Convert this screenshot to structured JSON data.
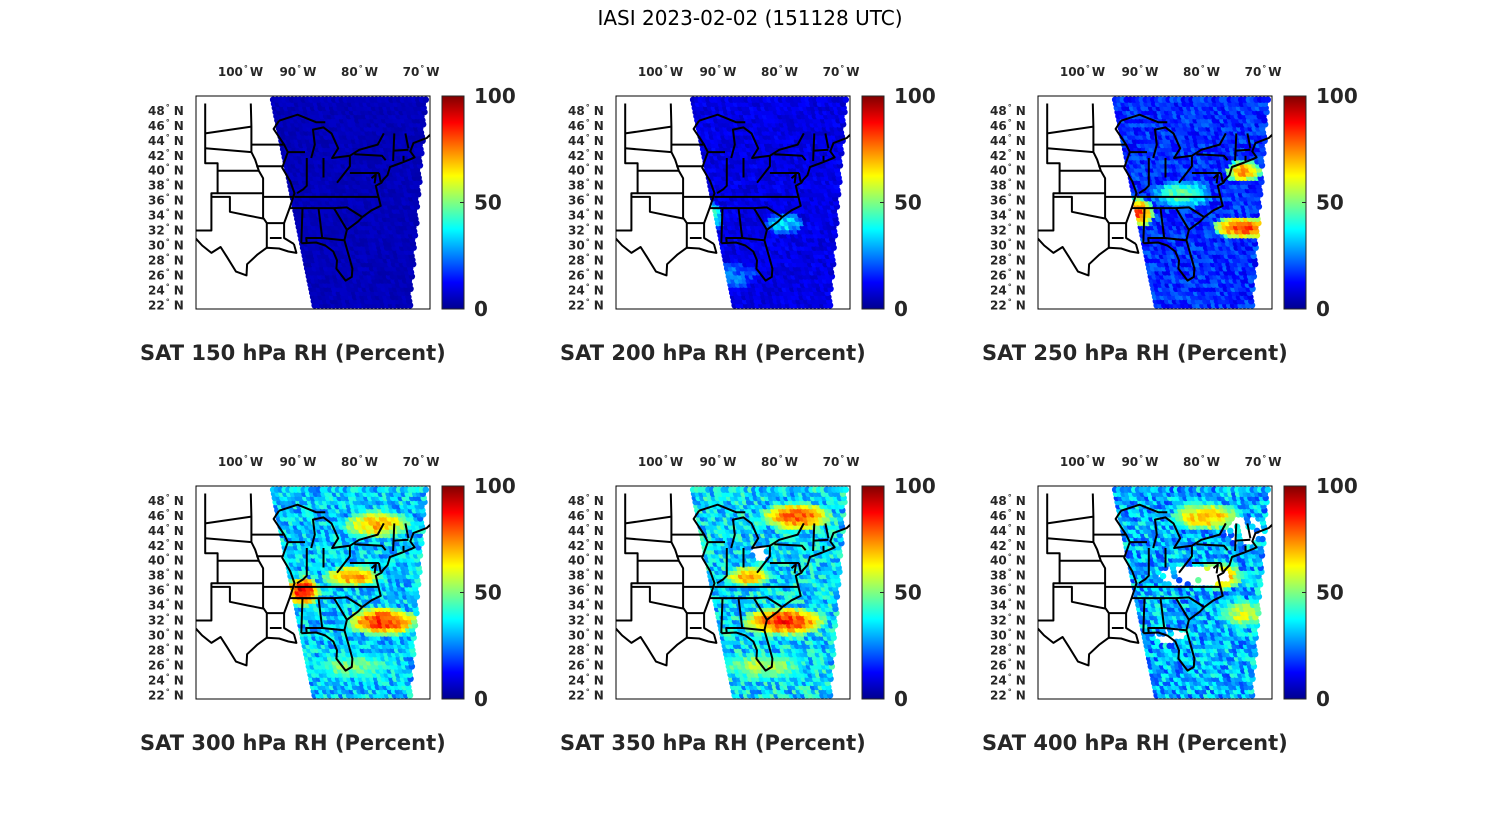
{
  "figure_title": "IASI 2023-02-02 (151128 UTC)",
  "colormap": {
    "name": "jet",
    "stops": [
      "#00008f",
      "#0000ff",
      "#0080ff",
      "#00ffff",
      "#80ff80",
      "#ffff00",
      "#ff8000",
      "#ff0000",
      "#800000"
    ]
  },
  "axes": {
    "lon_ticks": [
      {
        "value": 100,
        "label": "100",
        "unit": "W"
      },
      {
        "value": 90,
        "label": "90",
        "unit": "W"
      },
      {
        "value": 80,
        "label": "80",
        "unit": "W"
      },
      {
        "value": 70,
        "label": "70",
        "unit": "W"
      }
    ],
    "lat_ticks": [
      {
        "value": 48,
        "label": "48",
        "unit": "N"
      },
      {
        "value": 46,
        "label": "46",
        "unit": "N"
      },
      {
        "value": 44,
        "label": "44",
        "unit": "N"
      },
      {
        "value": 42,
        "label": "42",
        "unit": "N"
      },
      {
        "value": 40,
        "label": "40",
        "unit": "N"
      },
      {
        "value": 38,
        "label": "38",
        "unit": "N"
      },
      {
        "value": 36,
        "label": "36",
        "unit": "N"
      },
      {
        "value": 34,
        "label": "34",
        "unit": "N"
      },
      {
        "value": 32,
        "label": "32",
        "unit": "N"
      },
      {
        "value": 30,
        "label": "30",
        "unit": "N"
      },
      {
        "value": 28,
        "label": "28",
        "unit": "N"
      },
      {
        "value": 26,
        "label": "26",
        "unit": "N"
      },
      {
        "value": 24,
        "label": "24",
        "unit": "N"
      },
      {
        "value": 22,
        "label": "22",
        "unit": "N"
      }
    ],
    "degree_symbol": "°"
  },
  "colorbar": {
    "min": 0,
    "max": 100,
    "tick_labels": [
      "100",
      "50",
      "0"
    ]
  },
  "panels": [
    {
      "title": "SAT 150 hPa RH (Percent)",
      "base": 4,
      "noise": 4,
      "moist": [],
      "gaps": []
    },
    {
      "title": "SAT 200 hPa RH (Percent)",
      "base": 8,
      "noise": 8,
      "moist": [
        {
          "lon": -90,
          "lat": 34,
          "rx": 2,
          "ry": 2,
          "v": 45
        },
        {
          "lon": -78,
          "lat": 33,
          "rx": 3,
          "ry": 1.5,
          "v": 35
        },
        {
          "lon": -88,
          "lat": 26,
          "rx": 6,
          "ry": 2,
          "v": 25
        }
      ],
      "gaps": []
    },
    {
      "title": "SAT 250 hPa RH (Percent)",
      "base": 14,
      "noise": 14,
      "moist": [
        {
          "lon": -89,
          "lat": 34.5,
          "rx": 2.5,
          "ry": 2,
          "v": 80
        },
        {
          "lon": -72,
          "lat": 32.5,
          "rx": 5,
          "ry": 1.5,
          "v": 85
        },
        {
          "lon": -72,
          "lat": 40,
          "rx": 3,
          "ry": 1.5,
          "v": 75
        },
        {
          "lon": -82,
          "lat": 37,
          "rx": 5,
          "ry": 2,
          "v": 45
        }
      ],
      "gaps": []
    },
    {
      "title": "SAT 300 hPa RH (Percent)",
      "base": 28,
      "noise": 22,
      "moist": [
        {
          "lon": -88,
          "lat": 36,
          "rx": 3,
          "ry": 2,
          "v": 90
        },
        {
          "lon": -75,
          "lat": 32,
          "rx": 6,
          "ry": 2,
          "v": 85
        },
        {
          "lon": -76,
          "lat": 45,
          "rx": 6,
          "ry": 2,
          "v": 70
        },
        {
          "lon": -80,
          "lat": 38,
          "rx": 5,
          "ry": 1.5,
          "v": 75
        },
        {
          "lon": -80,
          "lat": 26,
          "rx": 8,
          "ry": 2,
          "v": 50
        }
      ],
      "gaps": []
    },
    {
      "title": "SAT 350 hPa RH (Percent)",
      "base": 30,
      "noise": 24,
      "moist": [
        {
          "lon": -76,
          "lat": 46,
          "rx": 6,
          "ry": 2,
          "v": 80
        },
        {
          "lon": -78,
          "lat": 32,
          "rx": 7,
          "ry": 2,
          "v": 85
        },
        {
          "lon": -84,
          "lat": 38,
          "rx": 4,
          "ry": 1.5,
          "v": 70
        },
        {
          "lon": -82,
          "lat": 26,
          "rx": 8,
          "ry": 2,
          "v": 55
        }
      ],
      "gaps": [
        {
          "lon": -82,
          "lat": 41,
          "rx": 2,
          "ry": 1
        }
      ]
    },
    {
      "title": "SAT 400 hPa RH (Percent)",
      "base": 25,
      "noise": 25,
      "moist": [
        {
          "lon": -78,
          "lat": 46,
          "rx": 6,
          "ry": 2,
          "v": 70
        },
        {
          "lon": -76,
          "lat": 38,
          "rx": 4,
          "ry": 2,
          "v": 75
        },
        {
          "lon": -72,
          "lat": 33,
          "rx": 4,
          "ry": 2,
          "v": 60
        }
      ],
      "gaps": [
        {
          "lon": -80,
          "lat": 38,
          "rx": 6,
          "ry": 1.5
        },
        {
          "lon": -72,
          "lat": 44,
          "rx": 3,
          "ry": 2
        },
        {
          "lon": -84,
          "lat": 30,
          "rx": 3,
          "ry": 1
        }
      ]
    }
  ]
}
